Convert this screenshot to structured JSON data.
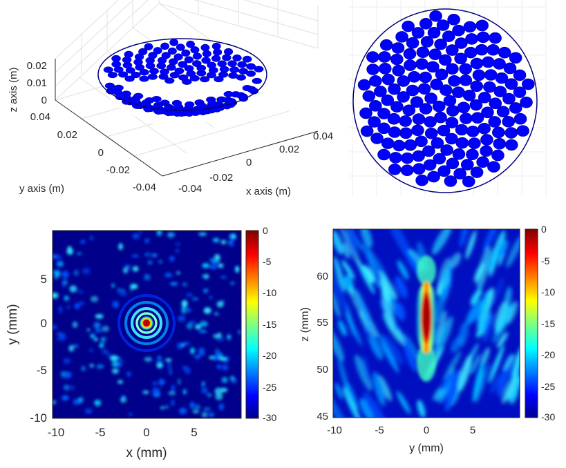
{
  "chart_data": [
    {
      "type": "scatter",
      "panel": "3d-array",
      "markers": "filled circles on spherical cap",
      "marker_color": "#0000FF",
      "outline_color": "#000080",
      "xlabel": "x axis (m)",
      "ylabel": "y axis (m)",
      "zlabel": "z axis (m)",
      "x_ticks": [
        "-0.04",
        "-0.02",
        "0",
        "0.02",
        "0.04"
      ],
      "y_ticks": [
        "-0.04",
        "-0.02",
        "0",
        "0.02",
        "0.04"
      ],
      "z_ticks": [
        "0",
        "0.01",
        "0.02"
      ],
      "xlim": [
        -0.04,
        0.04
      ],
      "ylim": [
        -0.04,
        0.04
      ],
      "zlim": [
        0,
        0.02
      ],
      "grid": true
    },
    {
      "type": "scatter",
      "panel": "array-top-view",
      "markers": "filled circles in circular aperture",
      "marker_color": "#0000FF",
      "outline_color": "#000080",
      "grid": true
    },
    {
      "type": "heatmap",
      "panel": "xy-field",
      "xlabel": "x (mm)",
      "ylabel": "y (mm)",
      "x_ticks": [
        "-10",
        "-5",
        "0",
        "5"
      ],
      "y_ticks": [
        "-10",
        "-5",
        "0",
        "5"
      ],
      "xlim": [
        -10,
        10
      ],
      "ylim": [
        -10,
        10
      ],
      "colorbar_ticks": [
        "0",
        "-5",
        "-10",
        "-15",
        "-20",
        "-25",
        "-30"
      ],
      "clim": [
        -30,
        0
      ],
      "colormap": "jet",
      "peak": {
        "x": 0,
        "y": 0,
        "value": 0
      }
    },
    {
      "type": "heatmap",
      "panel": "yz-field",
      "xlabel": "y (mm)",
      "ylabel": "z (mm)",
      "x_ticks": [
        "-10",
        "-5",
        "0",
        "5"
      ],
      "y_ticks": [
        "45",
        "50",
        "55",
        "60"
      ],
      "xlim": [
        -10,
        10
      ],
      "ylim": [
        45,
        65
      ],
      "colorbar_ticks": [
        "0",
        "-5",
        "-10",
        "-15",
        "-20",
        "-25",
        "-30"
      ],
      "clim": [
        -30,
        0
      ],
      "colormap": "jet",
      "peak": {
        "y": 0,
        "z": 55,
        "value": 0
      }
    }
  ]
}
